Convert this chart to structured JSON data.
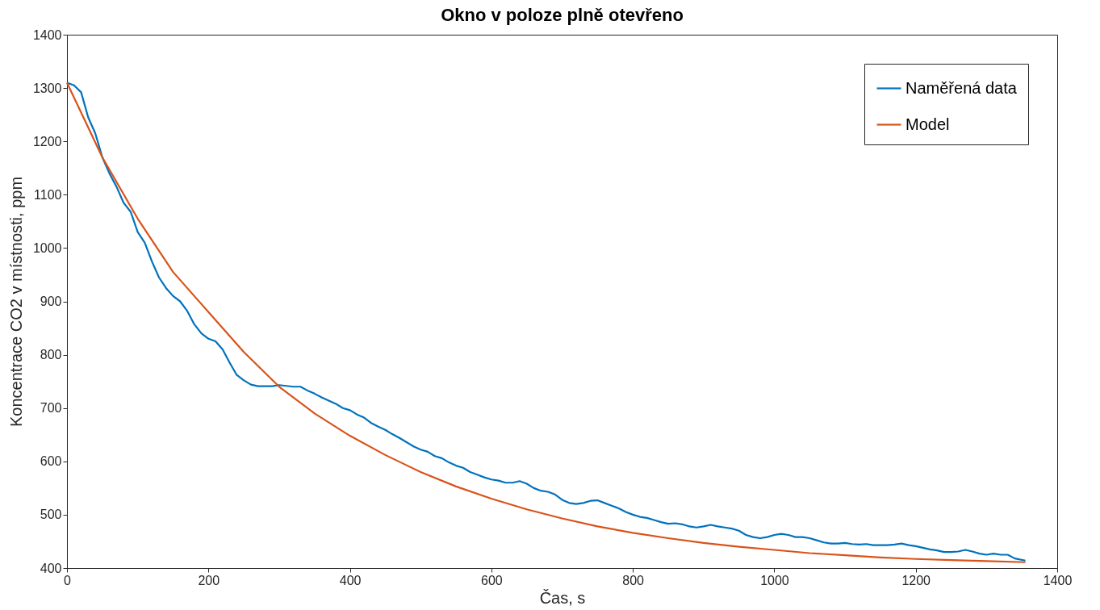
{
  "chart_data": {
    "type": "line",
    "title": "Okno v poloze plně otevřeno",
    "xlabel": "Čas, s",
    "ylabel": "Koncentrace CO2 v místnosti, ppm",
    "xlim": [
      0,
      1400
    ],
    "xticks": [
      0,
      200,
      400,
      600,
      800,
      1000,
      1200,
      1400
    ],
    "ylim": [
      400,
      1400
    ],
    "yticks": [
      400,
      500,
      600,
      700,
      800,
      900,
      1000,
      1100,
      1200,
      1300,
      1400
    ],
    "grid": false,
    "legend": "top right",
    "line_style": "solid",
    "marker": "none",
    "series": [
      {
        "name": "Naměřená data",
        "color": "#0072bd",
        "x": [
          0,
          10,
          20,
          30,
          40,
          50,
          60,
          70,
          80,
          90,
          100,
          110,
          120,
          130,
          140,
          150,
          160,
          170,
          180,
          190,
          200,
          210,
          220,
          230,
          240,
          250,
          260,
          270,
          290,
          300,
          320,
          330,
          340,
          350,
          360,
          370,
          380,
          390,
          400,
          410,
          420,
          430,
          440,
          450,
          460,
          470,
          480,
          490,
          500,
          510,
          520,
          530,
          540,
          550,
          560,
          570,
          580,
          590,
          600,
          610,
          620,
          630,
          640,
          650,
          660,
          670,
          680,
          690,
          700,
          710,
          720,
          730,
          740,
          750,
          760,
          770,
          780,
          790,
          800,
          810,
          820,
          830,
          840,
          850,
          860,
          870,
          880,
          890,
          900,
          910,
          920,
          930,
          940,
          950,
          960,
          970,
          980,
          990,
          1000,
          1010,
          1020,
          1030,
          1040,
          1050,
          1060,
          1070,
          1080,
          1090,
          1100,
          1110,
          1120,
          1130,
          1140,
          1150,
          1160,
          1170,
          1180,
          1190,
          1200,
          1210,
          1220,
          1230,
          1240,
          1250,
          1260,
          1270,
          1280,
          1290,
          1300,
          1310,
          1320,
          1330,
          1340,
          1355
        ],
        "values": [
          1310,
          1305,
          1292,
          1245,
          1215,
          1170,
          1140,
          1115,
          1085,
          1068,
          1030,
          1010,
          975,
          945,
          925,
          910,
          900,
          882,
          857,
          840,
          830,
          825,
          810,
          785,
          762,
          752,
          744,
          741,
          741,
          743,
          740,
          740,
          733,
          727,
          720,
          714,
          708,
          700,
          696,
          688,
          682,
          672,
          665,
          659,
          651,
          644,
          636,
          628,
          622,
          618,
          610,
          606,
          598,
          592,
          588,
          580,
          575,
          570,
          566,
          564,
          560,
          560,
          563,
          558,
          550,
          545,
          543,
          538,
          528,
          522,
          520,
          522,
          526,
          527,
          522,
          517,
          512,
          505,
          500,
          496,
          494,
          490,
          486,
          483,
          484,
          482,
          478,
          476,
          478,
          481,
          478,
          476,
          474,
          470,
          462,
          458,
          456,
          458,
          462,
          464,
          462,
          458,
          458,
          456,
          452,
          448,
          446,
          446,
          447,
          445,
          444,
          445,
          443,
          443,
          443,
          444,
          446,
          443,
          441,
          438,
          435,
          433,
          430,
          430,
          431,
          434,
          431,
          427,
          425,
          427,
          425,
          425,
          418,
          414
        ]
      },
      {
        "name": "Model",
        "color": "#d95319",
        "x": [
          0,
          50,
          100,
          150,
          200,
          250,
          300,
          350,
          400,
          450,
          500,
          550,
          600,
          650,
          700,
          750,
          800,
          850,
          900,
          950,
          1000,
          1050,
          1100,
          1150,
          1200,
          1250,
          1300,
          1355
        ],
        "values": [
          1310,
          1170,
          1055,
          955,
          880,
          805,
          740,
          690,
          648,
          612,
          580,
          553,
          530,
          510,
          493,
          478,
          466,
          456,
          447,
          440,
          434,
          428,
          424,
          420,
          417,
          415,
          413,
          411
        ]
      }
    ]
  }
}
